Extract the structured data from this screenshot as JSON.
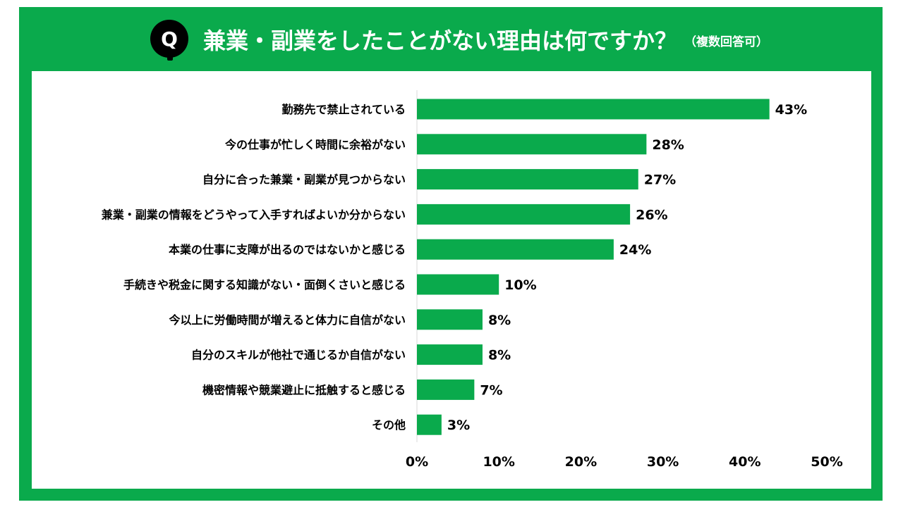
{
  "header": {
    "badge": "Q",
    "title": "兼業・副業をしたことがない理由は何ですか？",
    "subtitle": "（複数回答可）"
  },
  "colors": {
    "frame": "#0aaa4c",
    "bar": "#0aaa4c",
    "badge": "#000000"
  },
  "chart_data": {
    "type": "bar",
    "orientation": "horizontal",
    "title": "兼業・副業をしたことがない理由は何ですか？",
    "categories": [
      "勤務先で禁止されている",
      "今の仕事が忙しく時間に余裕がない",
      "自分に合った兼業・副業が見つからない",
      "兼業・副業の情報をどうやって入手すればよいか分からない",
      "本業の仕事に支障が出るのではないかと感じる",
      "手続きや税金に関する知識がない・面倒くさいと感じる",
      "今以上に労働時間が増えると体力に自信がない",
      "自分のスキルが他社で通じるか自信がない",
      "機密情報や競業避止に抵触すると感じる",
      "その他"
    ],
    "values": [
      43,
      28,
      27,
      26,
      24,
      10,
      8,
      8,
      7,
      3
    ],
    "value_labels": [
      "43%",
      "28%",
      "27%",
      "26%",
      "24%",
      "10%",
      "8%",
      "8%",
      "7%",
      "3%"
    ],
    "xlim": [
      0,
      50
    ],
    "xticks": [
      0,
      10,
      20,
      30,
      40,
      50
    ],
    "xtick_labels": [
      "0%",
      "10%",
      "20%",
      "30%",
      "40%",
      "50%"
    ],
    "grid": false,
    "legend": "none"
  }
}
